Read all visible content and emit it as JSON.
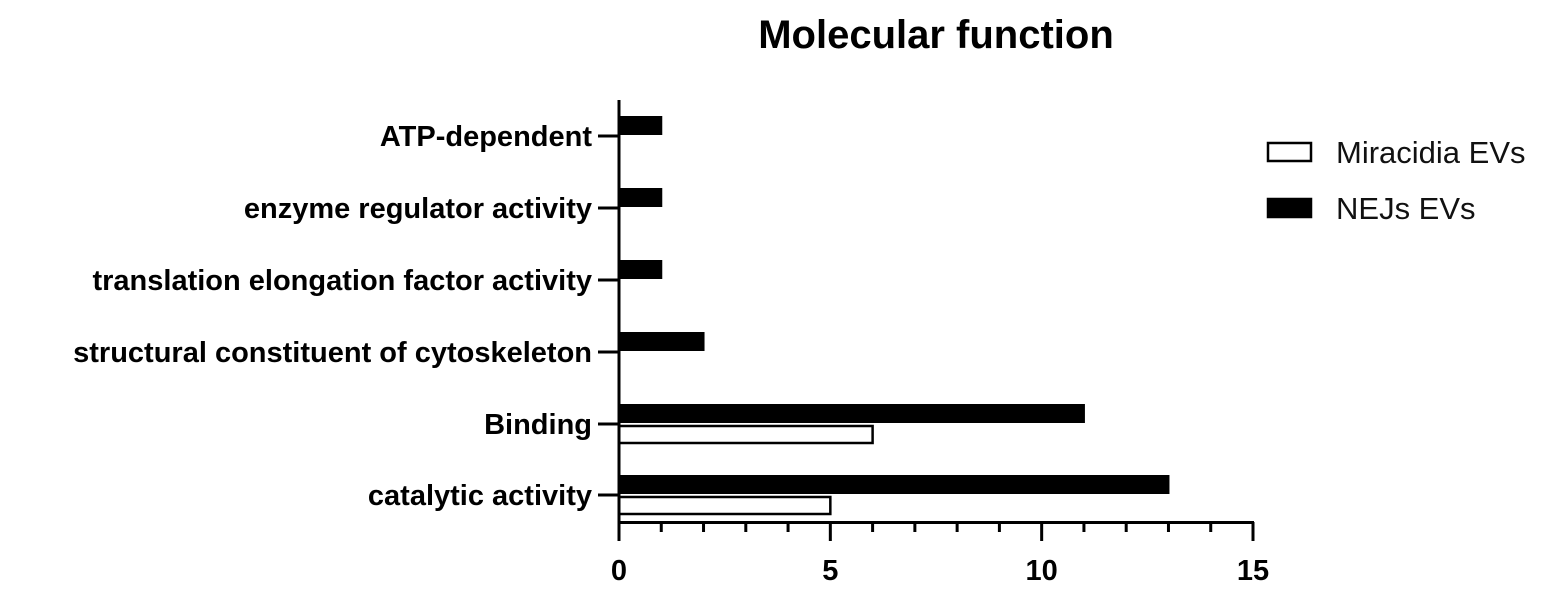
{
  "chart_data": {
    "type": "bar",
    "orientation": "horizontal",
    "title": "Molecular function",
    "xlabel": "",
    "ylabel": "",
    "xlim": [
      0,
      15
    ],
    "x_ticks": [
      0,
      5,
      10,
      15
    ],
    "x_minor_tick_step": 1,
    "grid": false,
    "legend_position": "top-right",
    "categories": [
      "catalytic activity",
      "Binding",
      "structural constituent of cytoskeleton",
      "translation elongation factor activity",
      "enzyme regulator activity",
      "ATP-dependent"
    ],
    "series": [
      {
        "name": "Miracidia EVs",
        "fill": "#ffffff",
        "stroke": "#000000",
        "values": [
          5,
          6,
          0,
          0,
          0,
          0
        ]
      },
      {
        "name": "NEJs EVs",
        "fill": "#000000",
        "stroke": "#000000",
        "values": [
          13,
          11,
          2,
          1,
          1,
          1
        ]
      }
    ]
  }
}
